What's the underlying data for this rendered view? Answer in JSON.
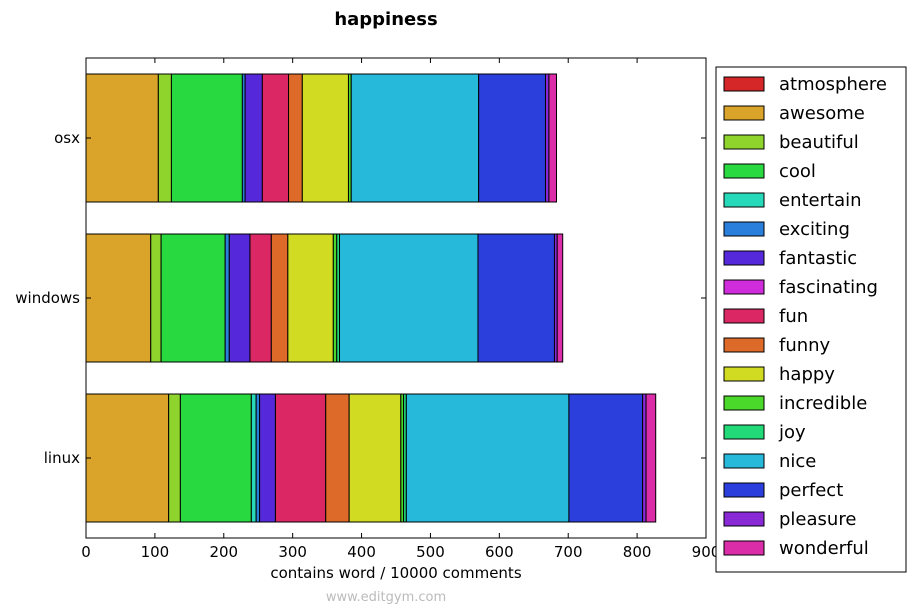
{
  "chart_data": {
    "type": "bar",
    "orientation": "horizontal",
    "stacked": true,
    "title": "happiness",
    "xlabel": "contains word / 10000 comments",
    "ylabel": "",
    "xlim": [
      0,
      900
    ],
    "xticks": [
      "0",
      "100",
      "200",
      "300",
      "400",
      "500",
      "600",
      "700",
      "800",
      "900"
    ],
    "categories": [
      "osx",
      "windows",
      "linux"
    ],
    "grid": false,
    "legend_position": "right",
    "series": [
      {
        "name": "atmosphere",
        "color": "#d62728",
        "values": [
          0,
          0,
          0
        ]
      },
      {
        "name": "awesome",
        "color": "#daa329",
        "values": [
          105,
          94,
          120
        ]
      },
      {
        "name": "beautiful",
        "color": "#8fd42c",
        "values": [
          19,
          15,
          17
        ]
      },
      {
        "name": "cool",
        "color": "#28d940",
        "values": [
          103,
          93,
          103
        ]
      },
      {
        "name": "entertain",
        "color": "#26d9b8",
        "values": [
          0,
          0,
          7
        ]
      },
      {
        "name": "exciting",
        "color": "#2a7fdc",
        "values": [
          4,
          6,
          5
        ]
      },
      {
        "name": "fantastic",
        "color": "#5529da",
        "values": [
          25,
          30,
          23
        ]
      },
      {
        "name": "fascinating",
        "color": "#cf2ddc",
        "values": [
          0,
          0,
          0
        ]
      },
      {
        "name": "fun",
        "color": "#db2763",
        "values": [
          38,
          31,
          73
        ]
      },
      {
        "name": "funny",
        "color": "#dd6a28",
        "values": [
          20,
          24,
          34
        ]
      },
      {
        "name": "happy",
        "color": "#d0db22",
        "values": [
          67,
          66,
          75
        ]
      },
      {
        "name": "incredible",
        "color": "#4ad92a",
        "values": [
          4,
          5,
          4
        ]
      },
      {
        "name": "joy",
        "color": "#22db78",
        "values": [
          0,
          4,
          4
        ]
      },
      {
        "name": "nice",
        "color": "#27b9da",
        "values": [
          185,
          201,
          236
        ]
      },
      {
        "name": "perfect",
        "color": "#2b3fdd",
        "values": [
          97,
          111,
          107
        ]
      },
      {
        "name": "pleasure",
        "color": "#8929d6",
        "values": [
          5,
          4,
          5
        ]
      },
      {
        "name": "wonderful",
        "color": "#db2da8",
        "values": [
          11,
          8,
          14
        ]
      }
    ]
  },
  "watermark": "www.editgym.com"
}
